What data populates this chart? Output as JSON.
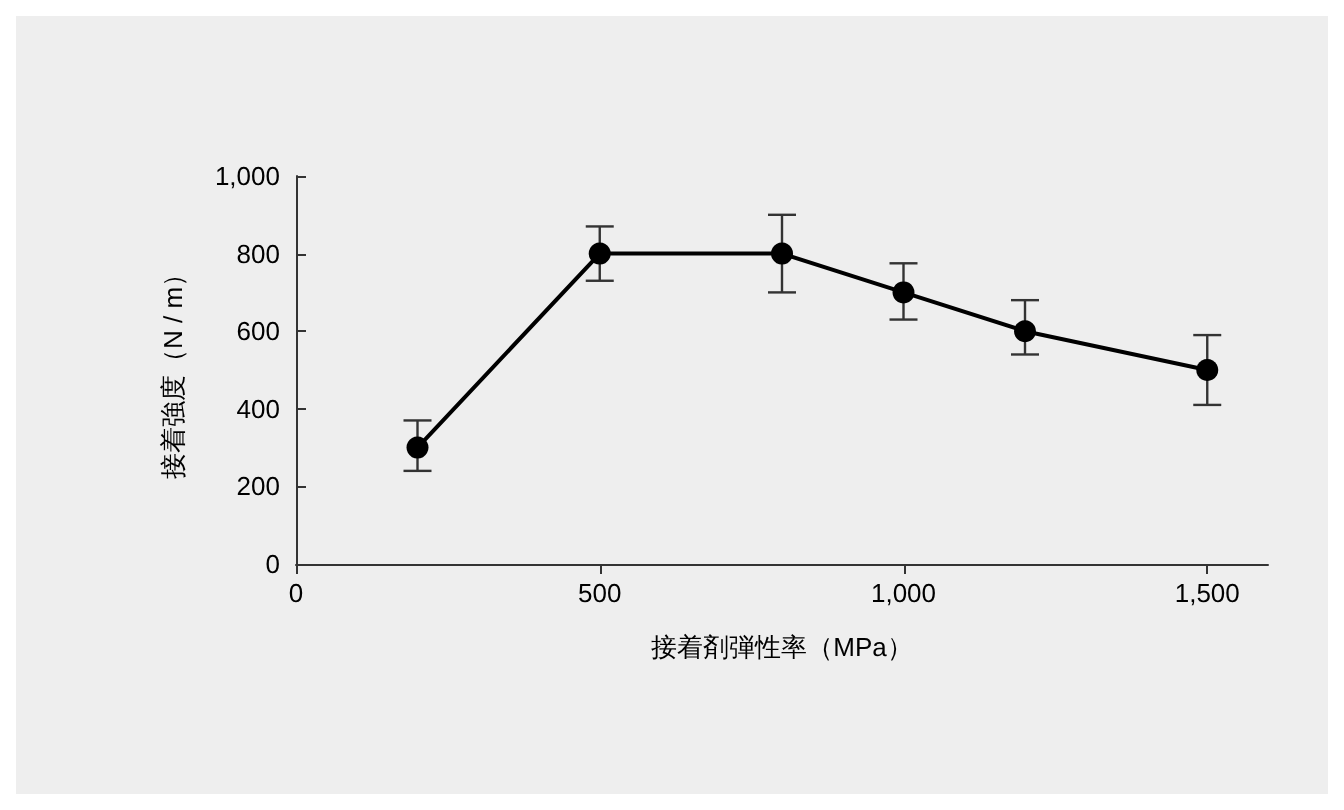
{
  "chart_data": {
    "type": "line",
    "xlabel": "接着剤弾性率（MPa）",
    "ylabel": "接着強度（N / m）",
    "x": [
      200,
      500,
      800,
      1000,
      1200,
      1500
    ],
    "series": [
      {
        "color": "#000000",
        "values": [
          300,
          800,
          800,
          700,
          600,
          500
        ],
        "errors": [
          [
            240,
            370
          ],
          [
            730,
            870
          ],
          [
            700,
            900
          ],
          [
            630,
            775
          ],
          [
            540,
            680
          ],
          [
            410,
            590
          ]
        ]
      }
    ],
    "xlim": [
      0,
      1600
    ],
    "xticks": [
      0,
      500,
      {
        "value": 1000,
        "label": "1,000"
      },
      {
        "value": 1500,
        "label": "1,500"
      }
    ],
    "ylim": [
      0,
      1000
    ],
    "yticks": [
      0,
      200,
      400,
      600,
      800,
      {
        "value": 1000,
        "label": "1,000"
      }
    ],
    "marker": "circle",
    "line_style": "solid",
    "grid": false
  }
}
